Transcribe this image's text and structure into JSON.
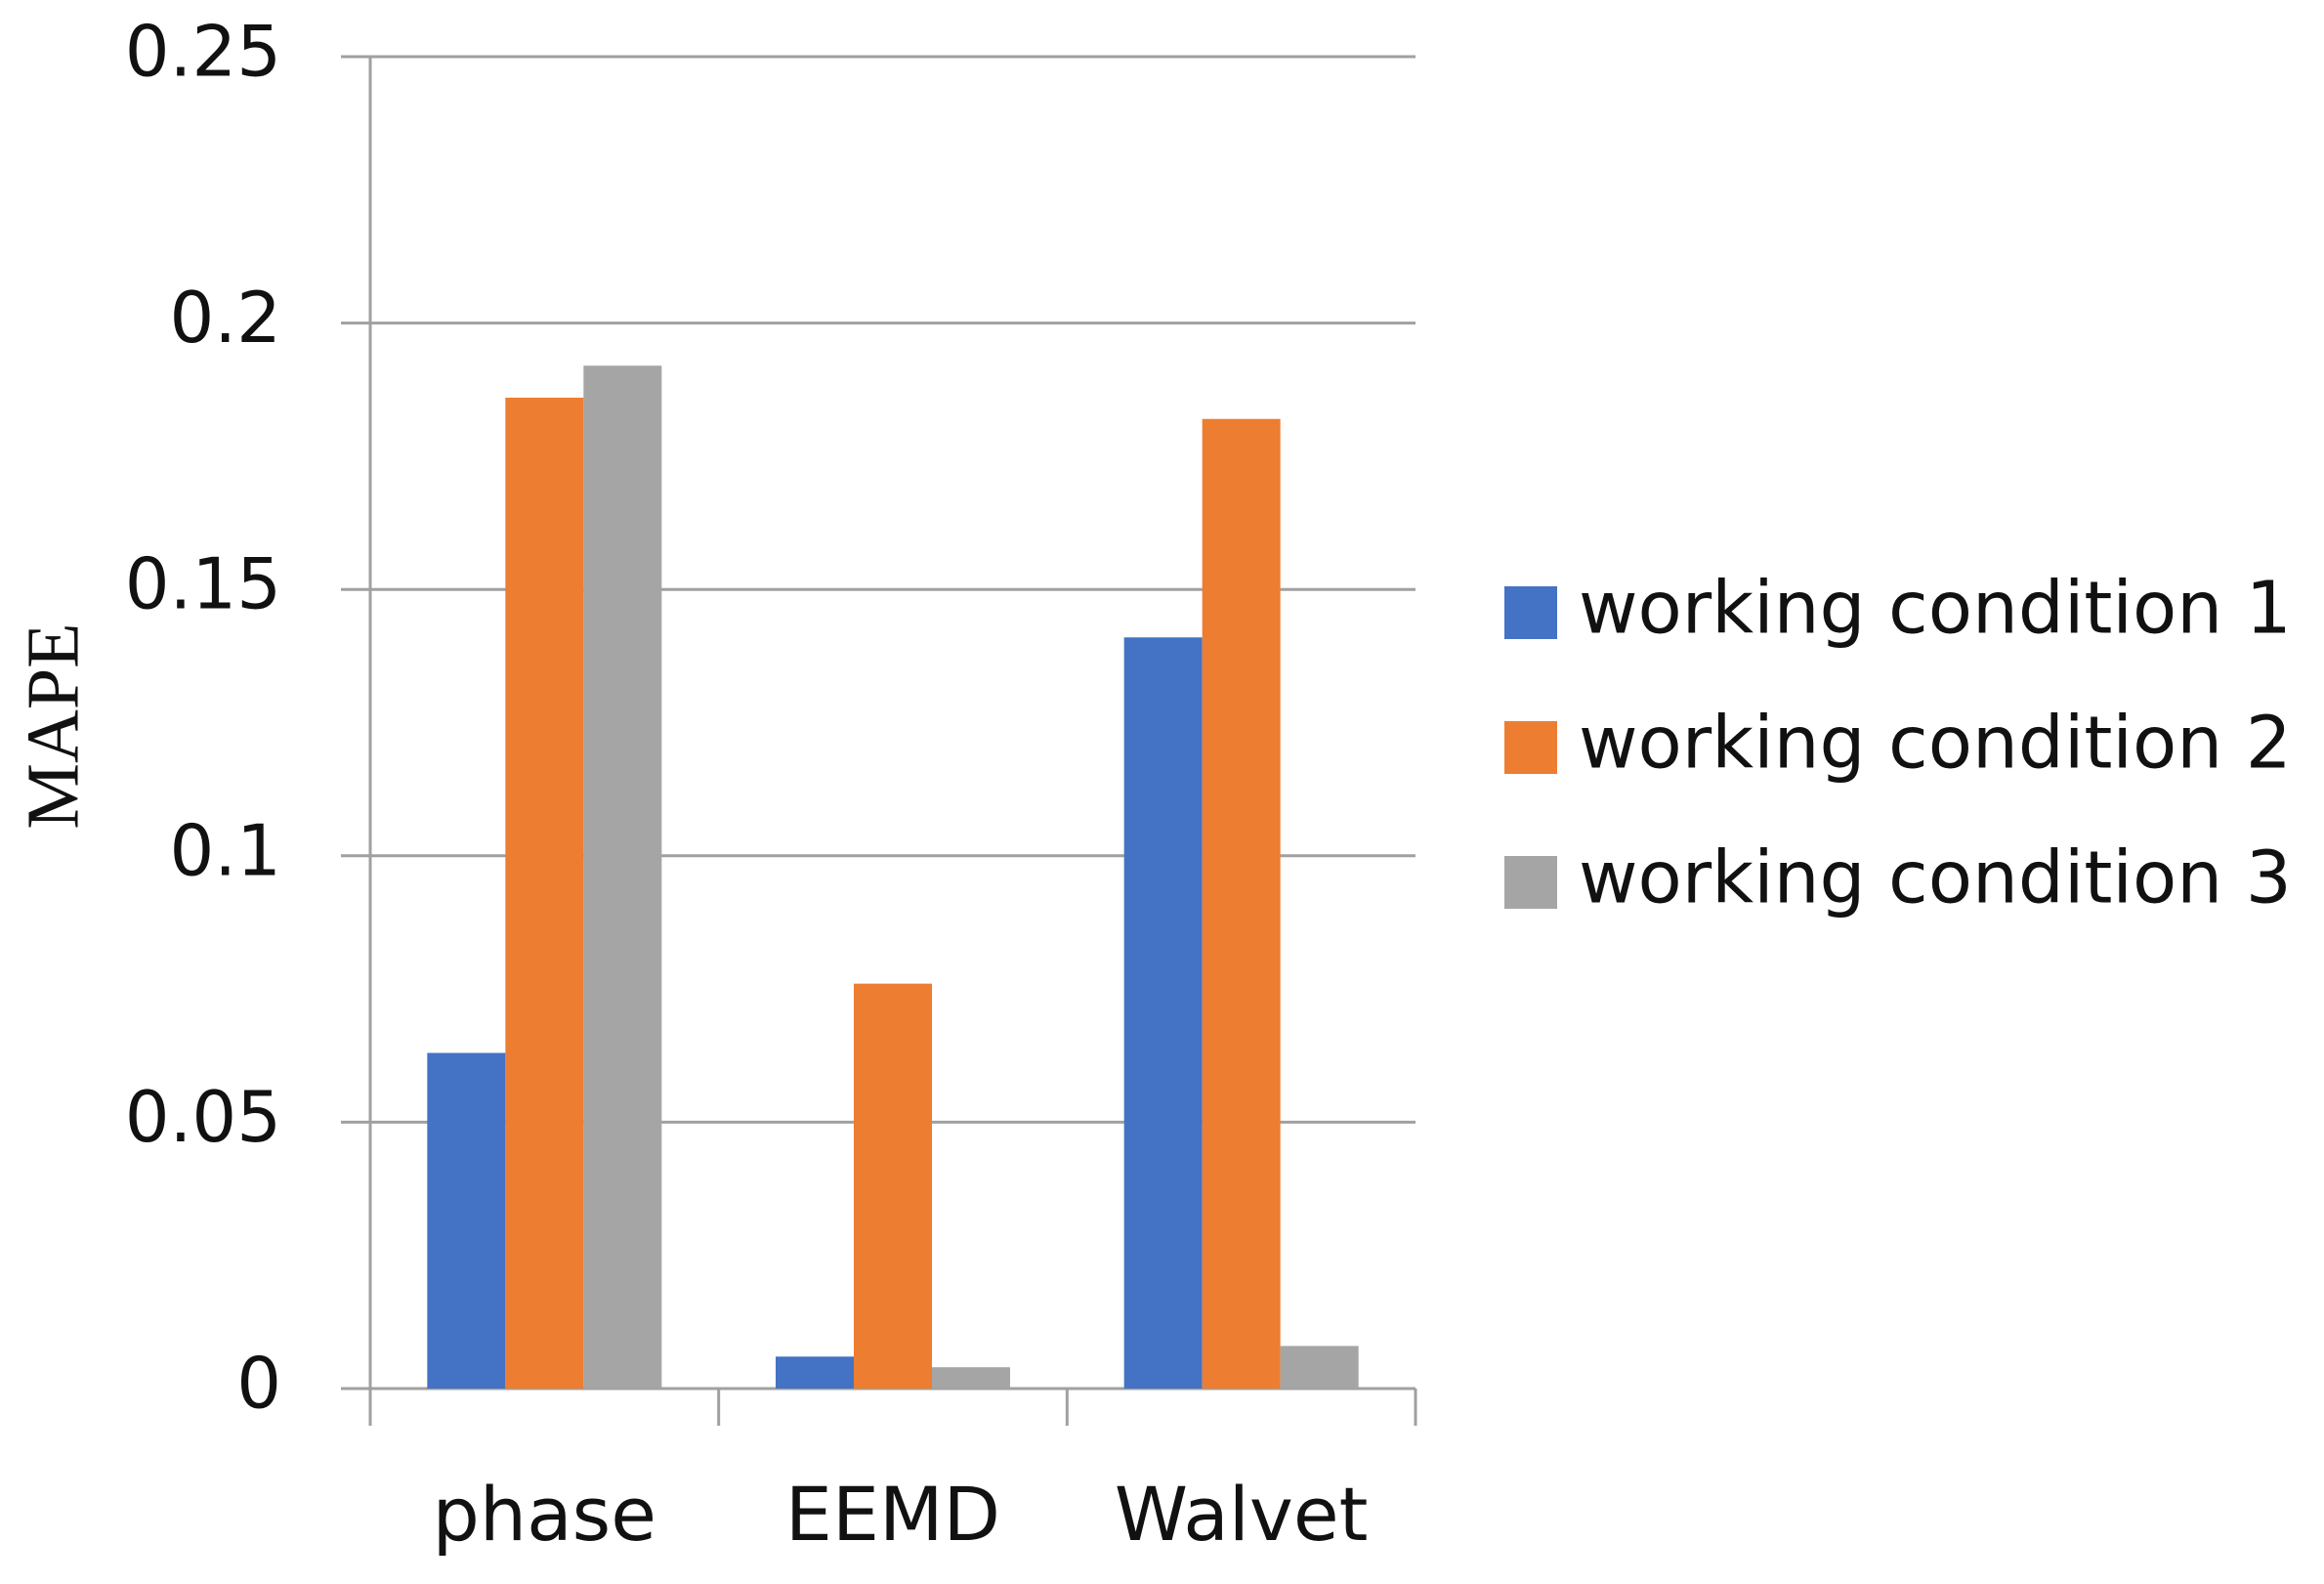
{
  "chart_data": {
    "type": "bar",
    "y_label": "MAPE",
    "categories": [
      "phase",
      "EEMD",
      "Walvet"
    ],
    "series": [
      {
        "name": "working condition 1",
        "color": "#4472c4",
        "values": [
          0.063,
          0.006,
          0.141
        ]
      },
      {
        "name": "working condition 2",
        "color": "#ed7d31",
        "values": [
          0.186,
          0.076,
          0.182
        ]
      },
      {
        "name": "working condition 3",
        "color": "#a5a5a5",
        "values": [
          0.192,
          0.004,
          0.008
        ]
      }
    ],
    "ylim": [
      0,
      0.25
    ],
    "yticks": [
      0,
      0.05,
      0.1,
      0.15,
      0.2,
      0.25
    ],
    "grid": true,
    "legend": "right"
  }
}
